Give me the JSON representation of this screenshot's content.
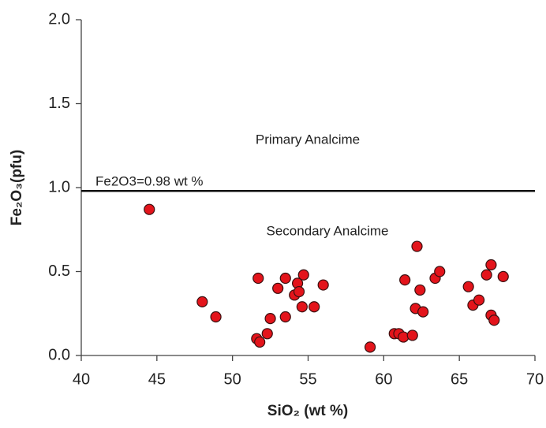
{
  "chart_data": {
    "type": "scatter",
    "x_label": "SiO₂ (wt %)",
    "y_label": "Fe₂O₃(pfu)",
    "annotations": [
      "Primary Analcime",
      "Secondary Analcime"
    ],
    "reference_line": {
      "value": 0.98,
      "label": "Fe2O3=0.98 wt %"
    },
    "color": "#e3141b",
    "xlim": [
      40,
      70
    ],
    "xticks": [
      40,
      45,
      50,
      55,
      60,
      65,
      70
    ],
    "ylim": [
      0,
      2
    ],
    "yticks": [
      {
        "value": 0,
        "label": "0.0"
      },
      0.5,
      {
        "value": 1,
        "label": "1.0"
      },
      1.5,
      {
        "value": 2,
        "label": "2.0"
      }
    ],
    "grid": false,
    "x": [
      44.5,
      48.0,
      48.9,
      51.7,
      51.6,
      51.8,
      52.3,
      52.5,
      53.0,
      53.5,
      53.5,
      54.1,
      54.3,
      54.4,
      54.6,
      54.7,
      55.4,
      56.0,
      59.1,
      60.7,
      61.0,
      61.3,
      61.4,
      61.9,
      62.1,
      62.2,
      62.4,
      62.6,
      63.4,
      63.7,
      65.6,
      65.9,
      66.3,
      66.8,
      67.1,
      67.1,
      67.3,
      67.9
    ],
    "y": [
      0.87,
      0.32,
      0.23,
      0.46,
      0.1,
      0.08,
      0.13,
      0.22,
      0.4,
      0.46,
      0.23,
      0.36,
      0.43,
      0.38,
      0.29,
      0.48,
      0.29,
      0.42,
      0.05,
      0.13,
      0.13,
      0.11,
      0.45,
      0.12,
      0.28,
      0.65,
      0.39,
      0.26,
      0.46,
      0.5,
      0.41,
      0.3,
      0.33,
      0.48,
      0.54,
      0.24,
      0.21,
      0.47
    ]
  }
}
